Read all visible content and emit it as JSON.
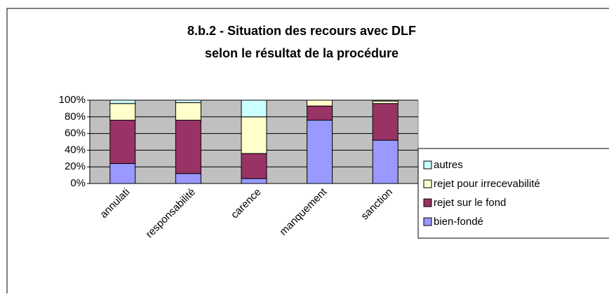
{
  "chart_data": {
    "type": "stacked_bar",
    "title": [
      "8.b.2 - Situation des recours avec DLF",
      "selon le résultat de la procédure"
    ],
    "categories": [
      "annulati",
      "responsabilité",
      "carence",
      "manquement",
      "sanction"
    ],
    "series": [
      {
        "name": "bien-fondé",
        "color": "#9999ff",
        "values": [
          24,
          12,
          6,
          76,
          52
        ]
      },
      {
        "name": "rejet sur le fond",
        "color": "#993366",
        "values": [
          52,
          64,
          30,
          17,
          44
        ]
      },
      {
        "name": "rejet pour irrecevabilité",
        "color": "#ffffcc",
        "values": [
          20,
          21,
          44,
          7,
          3
        ]
      },
      {
        "name": "autres",
        "color": "#ccffff",
        "values": [
          4,
          3,
          20,
          0,
          1
        ]
      }
    ],
    "ylim": [
      0,
      100
    ],
    "yticks": [
      {
        "value": 0,
        "label": "0%"
      },
      {
        "value": 20,
        "label": "20%"
      },
      {
        "value": 40,
        "label": "40%"
      },
      {
        "value": 60,
        "label": "60%"
      },
      {
        "value": 80,
        "label": "80%"
      },
      {
        "value": 100,
        "label": "100%"
      }
    ],
    "grid": true,
    "legend": "right"
  }
}
